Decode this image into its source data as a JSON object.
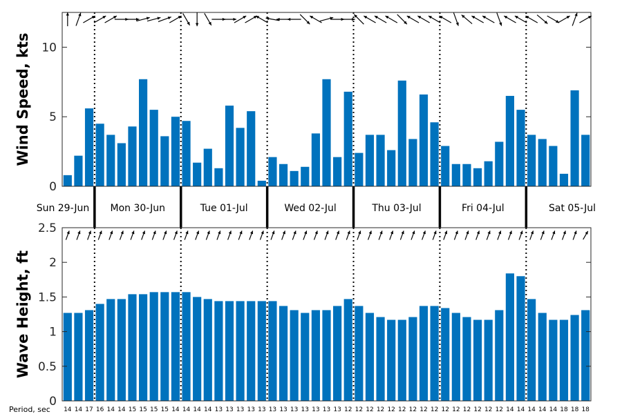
{
  "chart_data": [
    {
      "type": "bar",
      "ylabel": "Wind Speed, kts",
      "ylim": [
        0,
        12.5
      ],
      "yticks": [
        0,
        5,
        10
      ],
      "bar_color": "#0072bd",
      "values": [
        0.8,
        2.2,
        5.6,
        4.5,
        3.7,
        3.1,
        4.3,
        7.7,
        5.5,
        3.6,
        5.0,
        4.7,
        1.7,
        2.7,
        1.3,
        5.8,
        4.2,
        5.4,
        0.4,
        2.1,
        1.6,
        1.1,
        1.4,
        3.8,
        7.7,
        2.1,
        6.8,
        2.4,
        3.7,
        3.7,
        2.6,
        7.6,
        3.4,
        6.6,
        4.6,
        2.9,
        1.6,
        1.6,
        1.3,
        1.8,
        3.2,
        6.5,
        5.5,
        3.7,
        3.4,
        2.9,
        0.9,
        6.9,
        3.7
      ],
      "arrow_dirs_deg": [
        0,
        20,
        60,
        60,
        60,
        90,
        90,
        75,
        75,
        70,
        60,
        150,
        180,
        150,
        90,
        90,
        60,
        60,
        300,
        280,
        270,
        270,
        135,
        300,
        75,
        90,
        90,
        315,
        300,
        300,
        300,
        135,
        300,
        300,
        300,
        300,
        160,
        310,
        300,
        300,
        160,
        300,
        300,
        300,
        130,
        120,
        60,
        20,
        60
      ]
    },
    {
      "type": "bar",
      "ylabel": "Wave Height, ft",
      "ylim": [
        0,
        2.5
      ],
      "yticks": [
        0,
        0.5,
        1,
        1.5,
        2,
        2.5
      ],
      "ytick_labels": [
        "0",
        "0.5",
        "1",
        "1.5",
        "2",
        "2.5"
      ],
      "bar_color": "#0072bd",
      "values": [
        1.27,
        1.27,
        1.31,
        1.4,
        1.47,
        1.47,
        1.54,
        1.54,
        1.57,
        1.57,
        1.57,
        1.57,
        1.5,
        1.47,
        1.44,
        1.44,
        1.44,
        1.44,
        1.44,
        1.44,
        1.37,
        1.31,
        1.27,
        1.31,
        1.31,
        1.37,
        1.47,
        1.37,
        1.27,
        1.21,
        1.17,
        1.17,
        1.21,
        1.37,
        1.37,
        1.34,
        1.27,
        1.21,
        1.17,
        1.17,
        1.31,
        1.84,
        1.8,
        1.47,
        1.27,
        1.17,
        1.17,
        1.24,
        1.31
      ],
      "arrow_dirs_deg": [
        20,
        20,
        20,
        20,
        20,
        20,
        20,
        20,
        20,
        20,
        20,
        20,
        20,
        20,
        20,
        20,
        20,
        20,
        20,
        20,
        20,
        20,
        20,
        20,
        20,
        20,
        20,
        20,
        20,
        20,
        20,
        20,
        20,
        20,
        20,
        20,
        20,
        20,
        20,
        20,
        20,
        20,
        20,
        20,
        20,
        20,
        20,
        20,
        30
      ],
      "period_title": "Period, sec",
      "periods": [
        "14",
        "14",
        "17",
        "16",
        "14",
        "14",
        "15",
        "15",
        "15",
        "15",
        "14",
        "14",
        "14",
        "14",
        "13",
        "13",
        "13",
        "13",
        "13",
        "13",
        "13",
        "13",
        "13",
        "13",
        "13",
        "13",
        "12",
        "12",
        "12",
        "12",
        "12",
        "12",
        "12",
        "12",
        "12",
        "12",
        "12",
        "12",
        "12",
        "12",
        "12",
        "14",
        "14",
        "14",
        "14",
        "14",
        "18",
        "18",
        "18"
      ]
    }
  ],
  "days": [
    {
      "label": "Sun 29-Jun",
      "start": 0,
      "end": 3
    },
    {
      "label": "Mon 30-Jun",
      "start": 3,
      "end": 11
    },
    {
      "label": "Tue 01-Jul",
      "start": 11,
      "end": 19
    },
    {
      "label": "Wed 02-Jul",
      "start": 19,
      "end": 27
    },
    {
      "label": "Thu 03-Jul",
      "start": 27,
      "end": 35
    },
    {
      "label": "Fri 04-Jul",
      "start": 35,
      "end": 43
    },
    {
      "label": "Sat 05-Jul",
      "start": 43,
      "end": 49
    }
  ]
}
